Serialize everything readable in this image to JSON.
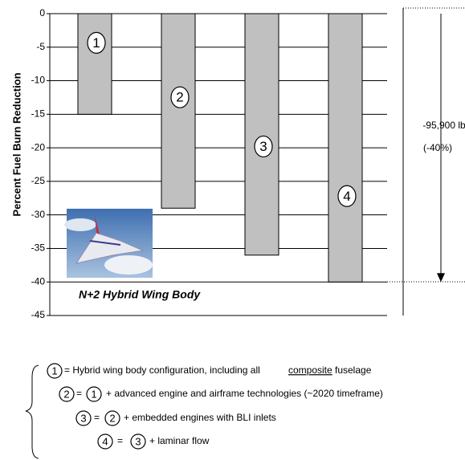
{
  "chart_data": {
    "type": "bar",
    "ylabel": "Percent Fuel Burn Reduction",
    "categories": [
      null,
      null,
      null,
      null
    ],
    "values": [
      -15,
      -29,
      -36,
      -40
    ],
    "bar_labels": [
      "1",
      "2",
      "3",
      "4"
    ],
    "color": "#c0c0c0",
    "ylim": [
      0,
      -45
    ],
    "yticks": [
      0,
      -5,
      -10,
      -15,
      -20,
      -25,
      -30,
      -35,
      -40,
      -45
    ],
    "grid": true,
    "annotation": [
      "-95,900 lb",
      "(-40%)"
    ],
    "inset_label": "N+2 Hybrid Wing Body"
  },
  "legend": [
    {
      "number": "1",
      "text": "= Hybrid wing body configuration, including all",
      "underlined": "composite",
      "text_end": "fuselage"
    },
    {
      "number": "2",
      "equals": "=",
      "ref": "1",
      "text": "+  advanced engine and airframe technologies (~2020 timeframe)"
    },
    {
      "number": "3",
      "equals": "=",
      "ref": "2",
      "text": "+ embedded engines with BLI inlets"
    },
    {
      "number": "4",
      "equals": "=",
      "ref": "3",
      "text": "+ laminar flow"
    }
  ]
}
